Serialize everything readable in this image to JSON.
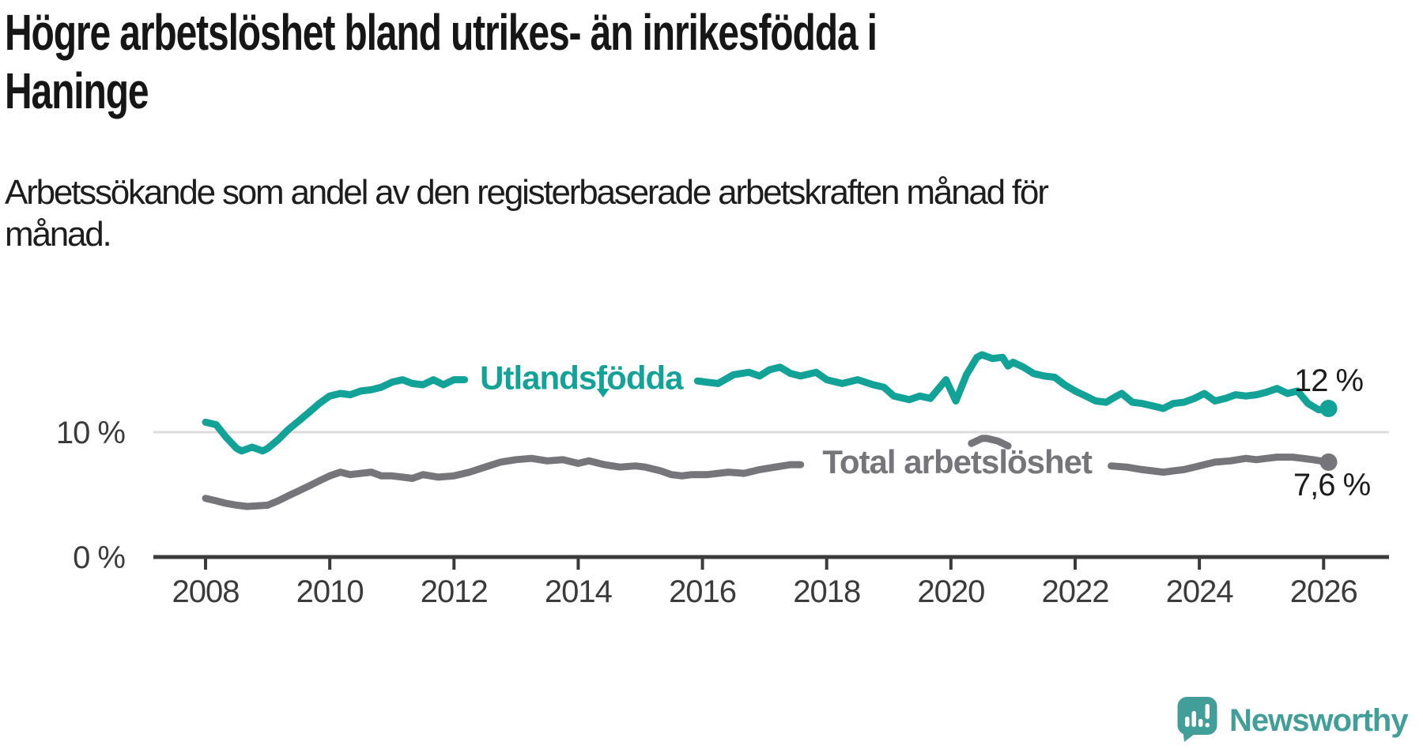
{
  "header": {
    "title": "Högre arbetslöshet bland utrikes- än inrikesfödda i\nHaninge",
    "subtitle": "Arbetssökande som andel av den registerbaserade arbetskraften månad för\nmånad."
  },
  "branding": {
    "logo_text": "Newsworthy",
    "logo_color": "#419e98"
  },
  "chart_data": {
    "type": "line",
    "title": "Högre arbetslöshet bland utrikes- än inrikesfödda i Haninge",
    "subtitle": "Arbetssökande som andel av den registerbaserade arbetskraften månad för månad.",
    "unit": "percent of registered labour force",
    "colors": {
      "grid": "#dcdcdc",
      "axis": "#3b3b3b",
      "text": "#3b3b3b"
    },
    "x_axis": {
      "min": 2007.2,
      "max": 2027.0,
      "ticks": [
        2008,
        2010,
        2012,
        2014,
        2016,
        2018,
        2020,
        2022,
        2024,
        2026
      ]
    },
    "y_axis": {
      "min": 0,
      "max": 17.5,
      "gridlines": [
        10
      ],
      "labels": [
        {
          "value": 0,
          "label": "0 %"
        },
        {
          "value": 10,
          "label": "10 %"
        }
      ]
    },
    "legend_position": "inline-on-line",
    "grid": "horizontal-only",
    "annotations": {
      "caret": {
        "x": 2014.4,
        "y": 13.48
      }
    },
    "series": [
      {
        "id": "utlandsfodda",
        "name": "Utlandsfödda",
        "color": "#12a298",
        "end_label": "12 %",
        "end_value": 11.9,
        "end_label_offset": [
          0,
          -22
        ],
        "label_pos": {
          "x": 2014.05,
          "y": 14.35
        },
        "label_gap": [
          2012.2,
          2015.85
        ],
        "points": [
          [
            2008.0,
            10.8
          ],
          [
            2008.17,
            10.6
          ],
          [
            2008.33,
            9.6
          ],
          [
            2008.5,
            8.7
          ],
          [
            2008.58,
            8.5
          ],
          [
            2008.75,
            8.8
          ],
          [
            2008.92,
            8.5
          ],
          [
            2009.0,
            8.7
          ],
          [
            2009.17,
            9.4
          ],
          [
            2009.33,
            10.2
          ],
          [
            2009.5,
            10.9
          ],
          [
            2009.67,
            11.6
          ],
          [
            2009.83,
            12.3
          ],
          [
            2010.0,
            12.9
          ],
          [
            2010.17,
            13.1
          ],
          [
            2010.33,
            13.0
          ],
          [
            2010.5,
            13.3
          ],
          [
            2010.67,
            13.4
          ],
          [
            2010.83,
            13.6
          ],
          [
            2011.0,
            14.0
          ],
          [
            2011.17,
            14.2
          ],
          [
            2011.33,
            13.9
          ],
          [
            2011.5,
            13.8
          ],
          [
            2011.67,
            14.2
          ],
          [
            2011.83,
            13.8
          ],
          [
            2012.0,
            14.2
          ],
          [
            2012.17,
            14.2
          ],
          [
            2012.5,
            14.4
          ],
          [
            2012.83,
            14.5
          ],
          [
            2013.17,
            14.6
          ],
          [
            2013.5,
            14.4
          ],
          [
            2013.83,
            14.5
          ],
          [
            2014.17,
            14.4
          ],
          [
            2014.5,
            14.2
          ],
          [
            2014.83,
            14.1
          ],
          [
            2015.17,
            14.0
          ],
          [
            2015.5,
            13.9
          ],
          [
            2015.75,
            14.0
          ],
          [
            2015.92,
            14.1
          ],
          [
            2016.08,
            14.0
          ],
          [
            2016.25,
            13.9
          ],
          [
            2016.5,
            14.6
          ],
          [
            2016.75,
            14.8
          ],
          [
            2016.92,
            14.5
          ],
          [
            2017.08,
            15.0
          ],
          [
            2017.25,
            15.2
          ],
          [
            2017.42,
            14.7
          ],
          [
            2017.58,
            14.5
          ],
          [
            2017.83,
            14.8
          ],
          [
            2018.0,
            14.2
          ],
          [
            2018.25,
            13.9
          ],
          [
            2018.5,
            14.2
          ],
          [
            2018.75,
            13.8
          ],
          [
            2018.92,
            13.6
          ],
          [
            2019.08,
            12.9
          ],
          [
            2019.33,
            12.6
          ],
          [
            2019.5,
            12.9
          ],
          [
            2019.67,
            12.7
          ],
          [
            2019.92,
            14.2
          ],
          [
            2020.08,
            12.5
          ],
          [
            2020.25,
            14.6
          ],
          [
            2020.42,
            16.0
          ],
          [
            2020.5,
            16.2
          ],
          [
            2020.67,
            15.9
          ],
          [
            2020.83,
            16.0
          ],
          [
            2020.92,
            15.3
          ],
          [
            2021.0,
            15.6
          ],
          [
            2021.17,
            15.2
          ],
          [
            2021.33,
            14.7
          ],
          [
            2021.5,
            14.5
          ],
          [
            2021.67,
            14.4
          ],
          [
            2021.83,
            13.8
          ],
          [
            2022.0,
            13.3
          ],
          [
            2022.17,
            12.9
          ],
          [
            2022.33,
            12.5
          ],
          [
            2022.5,
            12.4
          ],
          [
            2022.67,
            12.9
          ],
          [
            2022.75,
            13.1
          ],
          [
            2022.92,
            12.4
          ],
          [
            2023.08,
            12.3
          ],
          [
            2023.25,
            12.1
          ],
          [
            2023.42,
            11.9
          ],
          [
            2023.58,
            12.3
          ],
          [
            2023.75,
            12.4
          ],
          [
            2023.92,
            12.7
          ],
          [
            2024.08,
            13.1
          ],
          [
            2024.25,
            12.5
          ],
          [
            2024.42,
            12.7
          ],
          [
            2024.58,
            13.0
          ],
          [
            2024.75,
            12.9
          ],
          [
            2024.92,
            13.0
          ],
          [
            2025.08,
            13.2
          ],
          [
            2025.25,
            13.5
          ],
          [
            2025.42,
            13.1
          ],
          [
            2025.58,
            13.3
          ],
          [
            2025.75,
            12.3
          ],
          [
            2025.92,
            11.8
          ],
          [
            2026.08,
            11.9
          ]
        ]
      },
      {
        "id": "total",
        "name": "Total arbetslöshet",
        "color": "#76767a",
        "end_label": "7,6 %",
        "end_value": 7.6,
        "end_label_offset": [
          4,
          42
        ],
        "label_pos": {
          "x": 2020.1,
          "y": 7.6
        },
        "label_gap": [
          2017.7,
          2022.5
        ],
        "gap_show_above": 8.85,
        "points": [
          [
            2008.0,
            4.7
          ],
          [
            2008.17,
            4.5
          ],
          [
            2008.33,
            4.3
          ],
          [
            2008.5,
            4.15
          ],
          [
            2008.67,
            4.05
          ],
          [
            2008.83,
            4.1
          ],
          [
            2009.0,
            4.15
          ],
          [
            2009.17,
            4.5
          ],
          [
            2009.33,
            4.9
          ],
          [
            2009.5,
            5.3
          ],
          [
            2009.67,
            5.7
          ],
          [
            2009.83,
            6.1
          ],
          [
            2010.0,
            6.5
          ],
          [
            2010.17,
            6.8
          ],
          [
            2010.33,
            6.6
          ],
          [
            2010.5,
            6.7
          ],
          [
            2010.67,
            6.8
          ],
          [
            2010.83,
            6.5
          ],
          [
            2011.0,
            6.5
          ],
          [
            2011.17,
            6.4
          ],
          [
            2011.33,
            6.3
          ],
          [
            2011.5,
            6.6
          ],
          [
            2011.75,
            6.4
          ],
          [
            2012.0,
            6.5
          ],
          [
            2012.25,
            6.8
          ],
          [
            2012.5,
            7.2
          ],
          [
            2012.75,
            7.6
          ],
          [
            2013.0,
            7.8
          ],
          [
            2013.25,
            7.9
          ],
          [
            2013.5,
            7.7
          ],
          [
            2013.75,
            7.8
          ],
          [
            2014.0,
            7.5
          ],
          [
            2014.17,
            7.7
          ],
          [
            2014.42,
            7.4
          ],
          [
            2014.67,
            7.2
          ],
          [
            2014.92,
            7.3
          ],
          [
            2015.08,
            7.2
          ],
          [
            2015.33,
            6.9
          ],
          [
            2015.5,
            6.6
          ],
          [
            2015.67,
            6.5
          ],
          [
            2015.83,
            6.6
          ],
          [
            2016.08,
            6.6
          ],
          [
            2016.42,
            6.8
          ],
          [
            2016.67,
            6.7
          ],
          [
            2016.92,
            7.0
          ],
          [
            2017.17,
            7.2
          ],
          [
            2017.42,
            7.4
          ],
          [
            2017.58,
            7.4
          ],
          [
            2017.83,
            7.4
          ],
          [
            2018.08,
            7.3
          ],
          [
            2018.33,
            7.2
          ],
          [
            2018.58,
            7.1
          ],
          [
            2018.83,
            7.0
          ],
          [
            2019.08,
            6.9
          ],
          [
            2019.33,
            6.8
          ],
          [
            2019.58,
            6.9
          ],
          [
            2019.83,
            7.0
          ],
          [
            2020.0,
            7.2
          ],
          [
            2020.17,
            8.2
          ],
          [
            2020.33,
            9.1
          ],
          [
            2020.5,
            9.5
          ],
          [
            2020.58,
            9.5
          ],
          [
            2020.75,
            9.3
          ],
          [
            2020.92,
            8.9
          ],
          [
            2021.08,
            8.6
          ],
          [
            2021.33,
            8.2
          ],
          [
            2021.58,
            7.9
          ],
          [
            2021.83,
            7.6
          ],
          [
            2022.08,
            7.4
          ],
          [
            2022.33,
            7.3
          ],
          [
            2022.58,
            7.3
          ],
          [
            2022.83,
            7.2
          ],
          [
            2023.08,
            7.0
          ],
          [
            2023.25,
            6.9
          ],
          [
            2023.42,
            6.8
          ],
          [
            2023.58,
            6.9
          ],
          [
            2023.75,
            7.0
          ],
          [
            2023.92,
            7.2
          ],
          [
            2024.08,
            7.4
          ],
          [
            2024.25,
            7.6
          ],
          [
            2024.5,
            7.7
          ],
          [
            2024.75,
            7.9
          ],
          [
            2024.92,
            7.8
          ],
          [
            2025.08,
            7.9
          ],
          [
            2025.25,
            8.0
          ],
          [
            2025.5,
            8.0
          ],
          [
            2025.67,
            7.9
          ],
          [
            2025.83,
            7.8
          ],
          [
            2026.08,
            7.6
          ]
        ]
      }
    ]
  }
}
